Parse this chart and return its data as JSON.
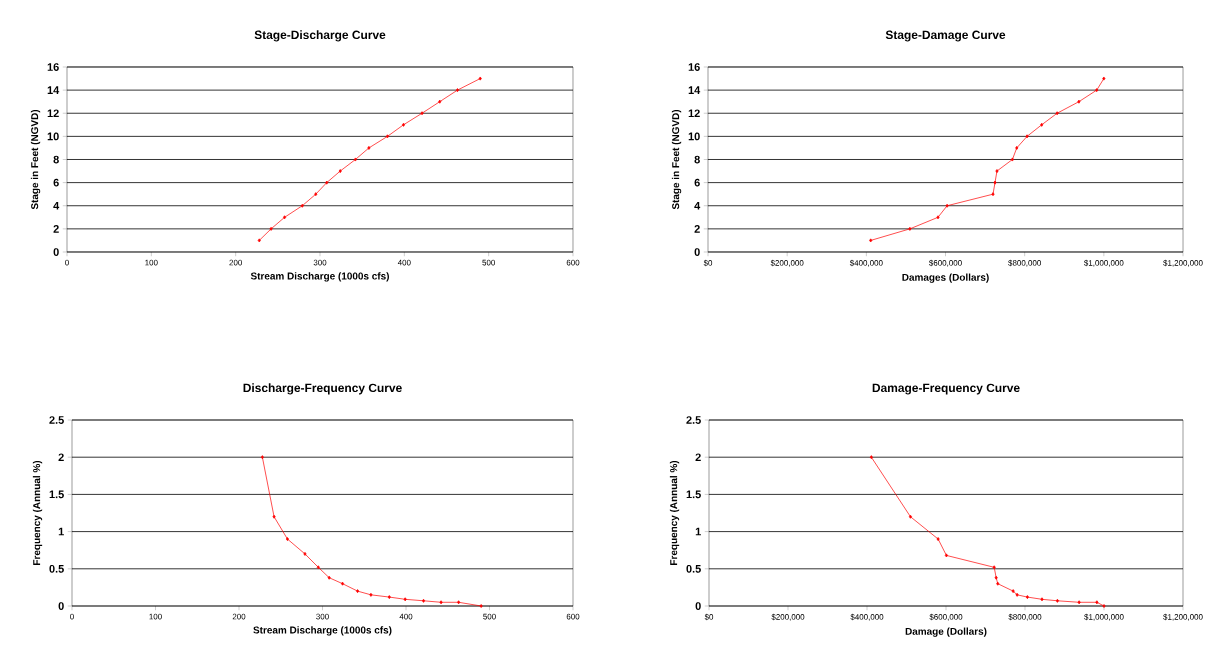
{
  "chart_data": [
    {
      "type": "line",
      "title": "Stage-Discharge Curve",
      "xlabel": "Stream Discharge (1000s cfs)",
      "ylabel": "Stage in Feet (NGVD)",
      "grid": "y",
      "marker": "diamond",
      "line_style": "solid",
      "x": [
        228,
        242,
        258,
        279,
        295,
        308,
        324,
        342,
        358,
        380,
        399,
        421,
        442,
        463,
        490
      ],
      "series": [
        {
          "color": "#ff0000",
          "values": [
            1,
            2,
            3,
            4,
            5,
            6,
            7,
            8,
            9,
            10,
            11,
            12,
            13,
            14,
            15
          ]
        }
      ],
      "xlim": [
        0,
        600
      ],
      "xticks": [
        0,
        100,
        200,
        300,
        400,
        500,
        600
      ],
      "ylim": [
        0,
        16
      ],
      "yticks": [
        0,
        2,
        4,
        6,
        8,
        10,
        12,
        14,
        16
      ]
    },
    {
      "type": "line",
      "title": "Stage-Damage Curve",
      "xlabel": "Damages (Dollars)",
      "ylabel": "Stage in Feet (NGVD)",
      "grid": "y",
      "marker": "diamond",
      "line_style": "solid",
      "x": [
        411000,
        510000,
        581000,
        604000,
        720000,
        725000,
        730000,
        769000,
        780000,
        806000,
        843000,
        882000,
        937000,
        982000,
        1000000
      ],
      "series": [
        {
          "color": "#ff0000",
          "values": [
            1,
            2,
            3,
            4,
            5,
            6,
            7,
            8,
            9,
            10,
            11,
            12,
            13,
            14,
            15
          ]
        }
      ],
      "xlim": [
        0,
        1200000
      ],
      "xticks": [
        {
          "value": 0,
          "label": "$0"
        },
        {
          "value": 200000,
          "label": "$200,000"
        },
        {
          "value": 400000,
          "label": "$400,000"
        },
        {
          "value": 600000,
          "label": "$600,000"
        },
        {
          "value": 800000,
          "label": "$800,000"
        },
        {
          "value": 1000000,
          "label": "$1,000,000"
        },
        {
          "value": 1200000,
          "label": "$1,200,000"
        }
      ],
      "ylim": [
        0,
        16
      ],
      "yticks": [
        0,
        2,
        4,
        6,
        8,
        10,
        12,
        14,
        16
      ]
    },
    {
      "type": "line",
      "title": "Discharge-Frequency Curve",
      "xlabel": "Stream Discharge (1000s cfs)",
      "ylabel": "Frequency (Annual %)",
      "grid": "y",
      "marker": "diamond",
      "line_style": "solid",
      "x": [
        228,
        242,
        258,
        279,
        295,
        308,
        324,
        342,
        358,
        380,
        399,
        421,
        442,
        463,
        490
      ],
      "series": [
        {
          "color": "#ff0000",
          "values": [
            2,
            1.2,
            0.9,
            0.7,
            0.52,
            0.38,
            0.3,
            0.2,
            0.15,
            0.12,
            0.09,
            0.07,
            0.05,
            0.05,
            0
          ]
        }
      ],
      "xlim": [
        0,
        600
      ],
      "xticks": [
        0,
        100,
        200,
        300,
        400,
        500,
        600
      ],
      "ylim": [
        0,
        2.5
      ],
      "yticks": [
        0,
        0.5,
        1,
        1.5,
        2,
        2.5
      ]
    },
    {
      "type": "line",
      "title": "Damage-Frequency Curve",
      "xlabel": "Damage (Dollars)",
      "ylabel": "Frequency (Annual %)",
      "grid": "y",
      "marker": "diamond",
      "line_style": "solid",
      "x": [
        411000,
        510000,
        580000,
        601000,
        722000,
        727000,
        731000,
        770000,
        780000,
        806000,
        843000,
        882000,
        937000,
        982000,
        1000000
      ],
      "series": [
        {
          "color": "#ff0000",
          "values": [
            2,
            1.2,
            0.9,
            0.68,
            0.52,
            0.38,
            0.3,
            0.2,
            0.15,
            0.12,
            0.09,
            0.07,
            0.05,
            0.05,
            0
          ]
        }
      ],
      "xlim": [
        0,
        1200000
      ],
      "xticks": [
        {
          "value": 0,
          "label": "$0"
        },
        {
          "value": 200000,
          "label": "$200,000"
        },
        {
          "value": 400000,
          "label": "$400,000"
        },
        {
          "value": 600000,
          "label": "$600,000"
        },
        {
          "value": 800000,
          "label": "$800,000"
        },
        {
          "value": 1000000,
          "label": "$1,000,000"
        },
        {
          "value": 1200000,
          "label": "$1,200,000"
        }
      ],
      "ylim": [
        0,
        2.5
      ],
      "yticks": [
        0,
        0.5,
        1,
        1.5,
        2,
        2.5
      ]
    }
  ]
}
